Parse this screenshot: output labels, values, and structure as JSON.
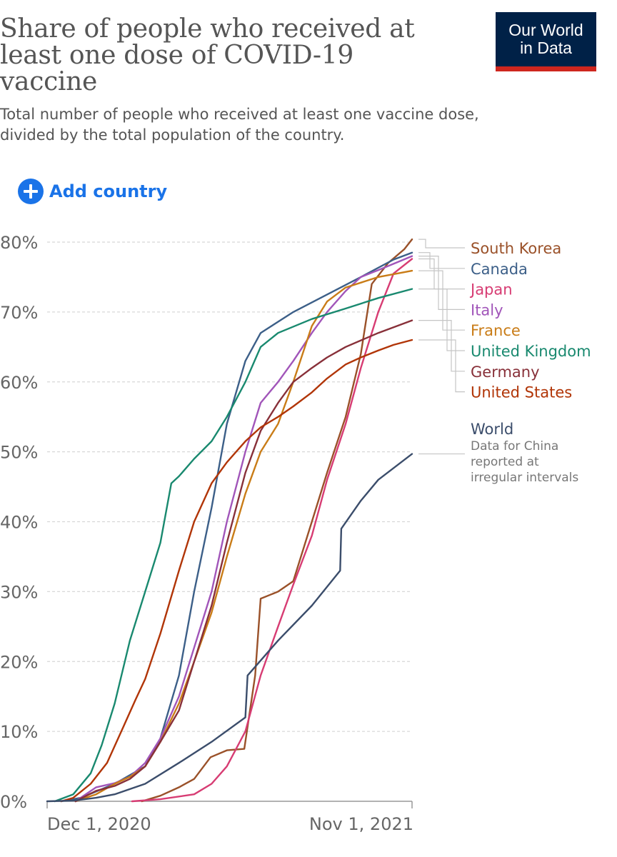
{
  "header": {
    "title_lines": [
      "Share of people who received at",
      "least one dose of COVID-19",
      "vaccine"
    ],
    "subtitle_lines": [
      "Total number of people who received at least one vaccine dose,",
      "divided by the total population of the country."
    ],
    "logo_lines": [
      "Our World",
      "in Data"
    ]
  },
  "controls": {
    "add_country_label": "Add country"
  },
  "colors": {
    "accent": "#1a73e8",
    "logo_bg": "#002147",
    "logo_stripe": "#ce261e",
    "grid": "#d8d8d8",
    "axis": "#999999"
  },
  "chart_data": {
    "type": "line",
    "title": "Share of people who received at least one dose of COVID-19 vaccine",
    "ylabel": "",
    "xlabel": "",
    "x_ticks": [
      "Dec 1, 2020",
      "Nov 1, 2021"
    ],
    "y_ticks": [
      "0%",
      "10%",
      "20%",
      "30%",
      "40%",
      "50%",
      "60%",
      "70%",
      "80%"
    ],
    "ylim": [
      0,
      80
    ],
    "xlim": [
      "2020-12-01",
      "2021-11-01"
    ],
    "grid": "horizontal dashed",
    "legend_placement": "right",
    "note": [
      "Data for China",
      "reported at",
      "irregular intervals"
    ],
    "series": [
      {
        "name": "South Korea",
        "color": "#9a5129",
        "points": [
          [
            "2021-02-26",
            0.0
          ],
          [
            "2021-03-15",
            0.8
          ],
          [
            "2021-04-01",
            2.0
          ],
          [
            "2021-04-15",
            3.2
          ],
          [
            "2021-04-30",
            6.3
          ],
          [
            "2021-05-15",
            7.3
          ],
          [
            "2021-05-31",
            7.5
          ],
          [
            "2021-06-10",
            18.0
          ],
          [
            "2021-06-15",
            29.0
          ],
          [
            "2021-07-01",
            30.0
          ],
          [
            "2021-07-15",
            31.5
          ],
          [
            "2021-08-01",
            40.0
          ],
          [
            "2021-08-15",
            47.0
          ],
          [
            "2021-09-01",
            55.0
          ],
          [
            "2021-09-15",
            64.0
          ],
          [
            "2021-09-25",
            74.0
          ],
          [
            "2021-10-10",
            77.0
          ],
          [
            "2021-10-25",
            79.0
          ],
          [
            "2021-11-01",
            80.4
          ]
        ]
      },
      {
        "name": "Canada",
        "color": "#3c5f88",
        "points": [
          [
            "2020-12-14",
            0.0
          ],
          [
            "2021-01-01",
            0.5
          ],
          [
            "2021-02-01",
            2.5
          ],
          [
            "2021-03-01",
            5.0
          ],
          [
            "2021-03-15",
            9.0
          ],
          [
            "2021-04-01",
            18.0
          ],
          [
            "2021-04-15",
            30.0
          ],
          [
            "2021-05-01",
            42.0
          ],
          [
            "2021-05-15",
            54.0
          ],
          [
            "2021-06-01",
            63.0
          ],
          [
            "2021-06-15",
            67.0
          ],
          [
            "2021-07-15",
            70.0
          ],
          [
            "2021-08-15",
            72.5
          ],
          [
            "2021-09-15",
            75.0
          ],
          [
            "2021-10-15",
            77.5
          ],
          [
            "2021-11-01",
            78.5
          ]
        ]
      },
      {
        "name": "Japan",
        "color": "#d73c73",
        "points": [
          [
            "2021-02-17",
            0.0
          ],
          [
            "2021-03-15",
            0.3
          ],
          [
            "2021-04-15",
            1.0
          ],
          [
            "2021-05-01",
            2.5
          ],
          [
            "2021-05-15",
            5.0
          ],
          [
            "2021-06-01",
            10.0
          ],
          [
            "2021-06-15",
            18.0
          ],
          [
            "2021-07-01",
            25.0
          ],
          [
            "2021-07-15",
            31.0
          ],
          [
            "2021-08-01",
            38.0
          ],
          [
            "2021-08-15",
            46.0
          ],
          [
            "2021-09-01",
            54.0
          ],
          [
            "2021-09-15",
            62.0
          ],
          [
            "2021-10-01",
            70.0
          ],
          [
            "2021-10-15",
            75.5
          ],
          [
            "2021-11-01",
            77.6
          ]
        ]
      },
      {
        "name": "Italy",
        "color": "#a155b9",
        "points": [
          [
            "2020-12-27",
            0.0
          ],
          [
            "2021-01-15",
            2.0
          ],
          [
            "2021-02-01",
            2.6
          ],
          [
            "2021-02-15",
            3.5
          ],
          [
            "2021-03-01",
            5.5
          ],
          [
            "2021-03-15",
            9.0
          ],
          [
            "2021-04-01",
            15.0
          ],
          [
            "2021-04-15",
            22.0
          ],
          [
            "2021-05-01",
            30.0
          ],
          [
            "2021-05-15",
            40.0
          ],
          [
            "2021-06-01",
            50.0
          ],
          [
            "2021-06-15",
            57.0
          ],
          [
            "2021-07-01",
            60.0
          ],
          [
            "2021-07-15",
            63.0
          ],
          [
            "2021-08-01",
            67.0
          ],
          [
            "2021-08-15",
            70.0
          ],
          [
            "2021-09-01",
            73.0
          ],
          [
            "2021-09-15",
            75.0
          ],
          [
            "2021-10-01",
            76.0
          ],
          [
            "2021-11-01",
            78.0
          ]
        ]
      },
      {
        "name": "France",
        "color": "#c97c17",
        "points": [
          [
            "2020-12-27",
            0.0
          ],
          [
            "2021-01-15",
            1.0
          ],
          [
            "2021-02-01",
            2.5
          ],
          [
            "2021-02-15",
            3.5
          ],
          [
            "2021-03-01",
            5.0
          ],
          [
            "2021-03-15",
            8.5
          ],
          [
            "2021-04-01",
            14.0
          ],
          [
            "2021-04-15",
            20.0
          ],
          [
            "2021-05-01",
            27.0
          ],
          [
            "2021-05-15",
            35.0
          ],
          [
            "2021-06-01",
            44.0
          ],
          [
            "2021-06-15",
            50.0
          ],
          [
            "2021-07-01",
            54.0
          ],
          [
            "2021-07-15",
            60.0
          ],
          [
            "2021-08-01",
            68.0
          ],
          [
            "2021-08-15",
            71.5
          ],
          [
            "2021-09-01",
            73.5
          ],
          [
            "2021-10-01",
            75.0
          ],
          [
            "2021-11-01",
            75.9
          ]
        ]
      },
      {
        "name": "United Kingdom",
        "color": "#19896f",
        "points": [
          [
            "2020-12-08",
            0.0
          ],
          [
            "2020-12-25",
            1.0
          ],
          [
            "2021-01-10",
            4.0
          ],
          [
            "2021-01-20",
            8.0
          ],
          [
            "2021-02-01",
            14.0
          ],
          [
            "2021-02-15",
            23.0
          ],
          [
            "2021-03-01",
            30.0
          ],
          [
            "2021-03-15",
            37.0
          ],
          [
            "2021-03-25",
            45.5
          ],
          [
            "2021-04-01",
            46.5
          ],
          [
            "2021-04-15",
            49.0
          ],
          [
            "2021-05-01",
            51.5
          ],
          [
            "2021-05-15",
            55.0
          ],
          [
            "2021-06-01",
            60.0
          ],
          [
            "2021-06-15",
            65.0
          ],
          [
            "2021-07-01",
            67.0
          ],
          [
            "2021-08-01",
            69.0
          ],
          [
            "2021-09-01",
            70.5
          ],
          [
            "2021-10-01",
            72.0
          ],
          [
            "2021-11-01",
            73.3
          ]
        ]
      },
      {
        "name": "Germany",
        "color": "#883039",
        "points": [
          [
            "2020-12-27",
            0.0
          ],
          [
            "2021-01-15",
            1.5
          ],
          [
            "2021-02-01",
            2.2
          ],
          [
            "2021-02-15",
            3.2
          ],
          [
            "2021-03-01",
            5.0
          ],
          [
            "2021-03-15",
            8.5
          ],
          [
            "2021-04-01",
            13.0
          ],
          [
            "2021-04-15",
            20.0
          ],
          [
            "2021-05-01",
            28.0
          ],
          [
            "2021-05-15",
            37.0
          ],
          [
            "2021-06-01",
            47.0
          ],
          [
            "2021-06-15",
            53.0
          ],
          [
            "2021-07-01",
            57.0
          ],
          [
            "2021-07-15",
            60.0
          ],
          [
            "2021-08-01",
            62.0
          ],
          [
            "2021-08-15",
            63.5
          ],
          [
            "2021-09-01",
            65.0
          ],
          [
            "2021-10-01",
            67.0
          ],
          [
            "2021-11-01",
            68.8
          ]
        ]
      },
      {
        "name": "United States",
        "color": "#b13507",
        "points": [
          [
            "2020-12-14",
            0.0
          ],
          [
            "2020-12-25",
            0.5
          ],
          [
            "2021-01-10",
            2.5
          ],
          [
            "2021-01-25",
            5.5
          ],
          [
            "2021-02-10",
            11.0
          ],
          [
            "2021-02-20",
            14.5
          ],
          [
            "2021-03-01",
            17.5
          ],
          [
            "2021-03-15",
            24.0
          ],
          [
            "2021-04-01",
            33.0
          ],
          [
            "2021-04-15",
            40.0
          ],
          [
            "2021-05-01",
            45.5
          ],
          [
            "2021-05-15",
            48.5
          ],
          [
            "2021-06-01",
            51.5
          ],
          [
            "2021-06-15",
            53.5
          ],
          [
            "2021-07-01",
            55.0
          ],
          [
            "2021-07-15",
            56.5
          ],
          [
            "2021-08-01",
            58.5
          ],
          [
            "2021-08-15",
            60.5
          ],
          [
            "2021-09-01",
            62.5
          ],
          [
            "2021-09-15",
            63.5
          ],
          [
            "2021-10-01",
            64.5
          ],
          [
            "2021-10-15",
            65.3
          ],
          [
            "2021-11-01",
            66.0
          ]
        ]
      },
      {
        "name": "World",
        "color": "#3b4d6b",
        "points": [
          [
            "2020-12-01",
            0.0
          ],
          [
            "2020-12-25",
            0.1
          ],
          [
            "2021-01-15",
            0.5
          ],
          [
            "2021-02-01",
            1.0
          ],
          [
            "2021-03-01",
            2.5
          ],
          [
            "2021-04-01",
            5.5
          ],
          [
            "2021-05-01",
            8.5
          ],
          [
            "2021-06-01",
            12.0
          ],
          [
            "2021-06-03",
            18.0
          ],
          [
            "2021-07-01",
            23.0
          ],
          [
            "2021-08-01",
            28.0
          ],
          [
            "2021-08-27",
            33.0
          ],
          [
            "2021-08-28",
            39.0
          ],
          [
            "2021-09-15",
            43.0
          ],
          [
            "2021-10-01",
            46.0
          ],
          [
            "2021-11-01",
            49.7
          ]
        ]
      }
    ]
  }
}
